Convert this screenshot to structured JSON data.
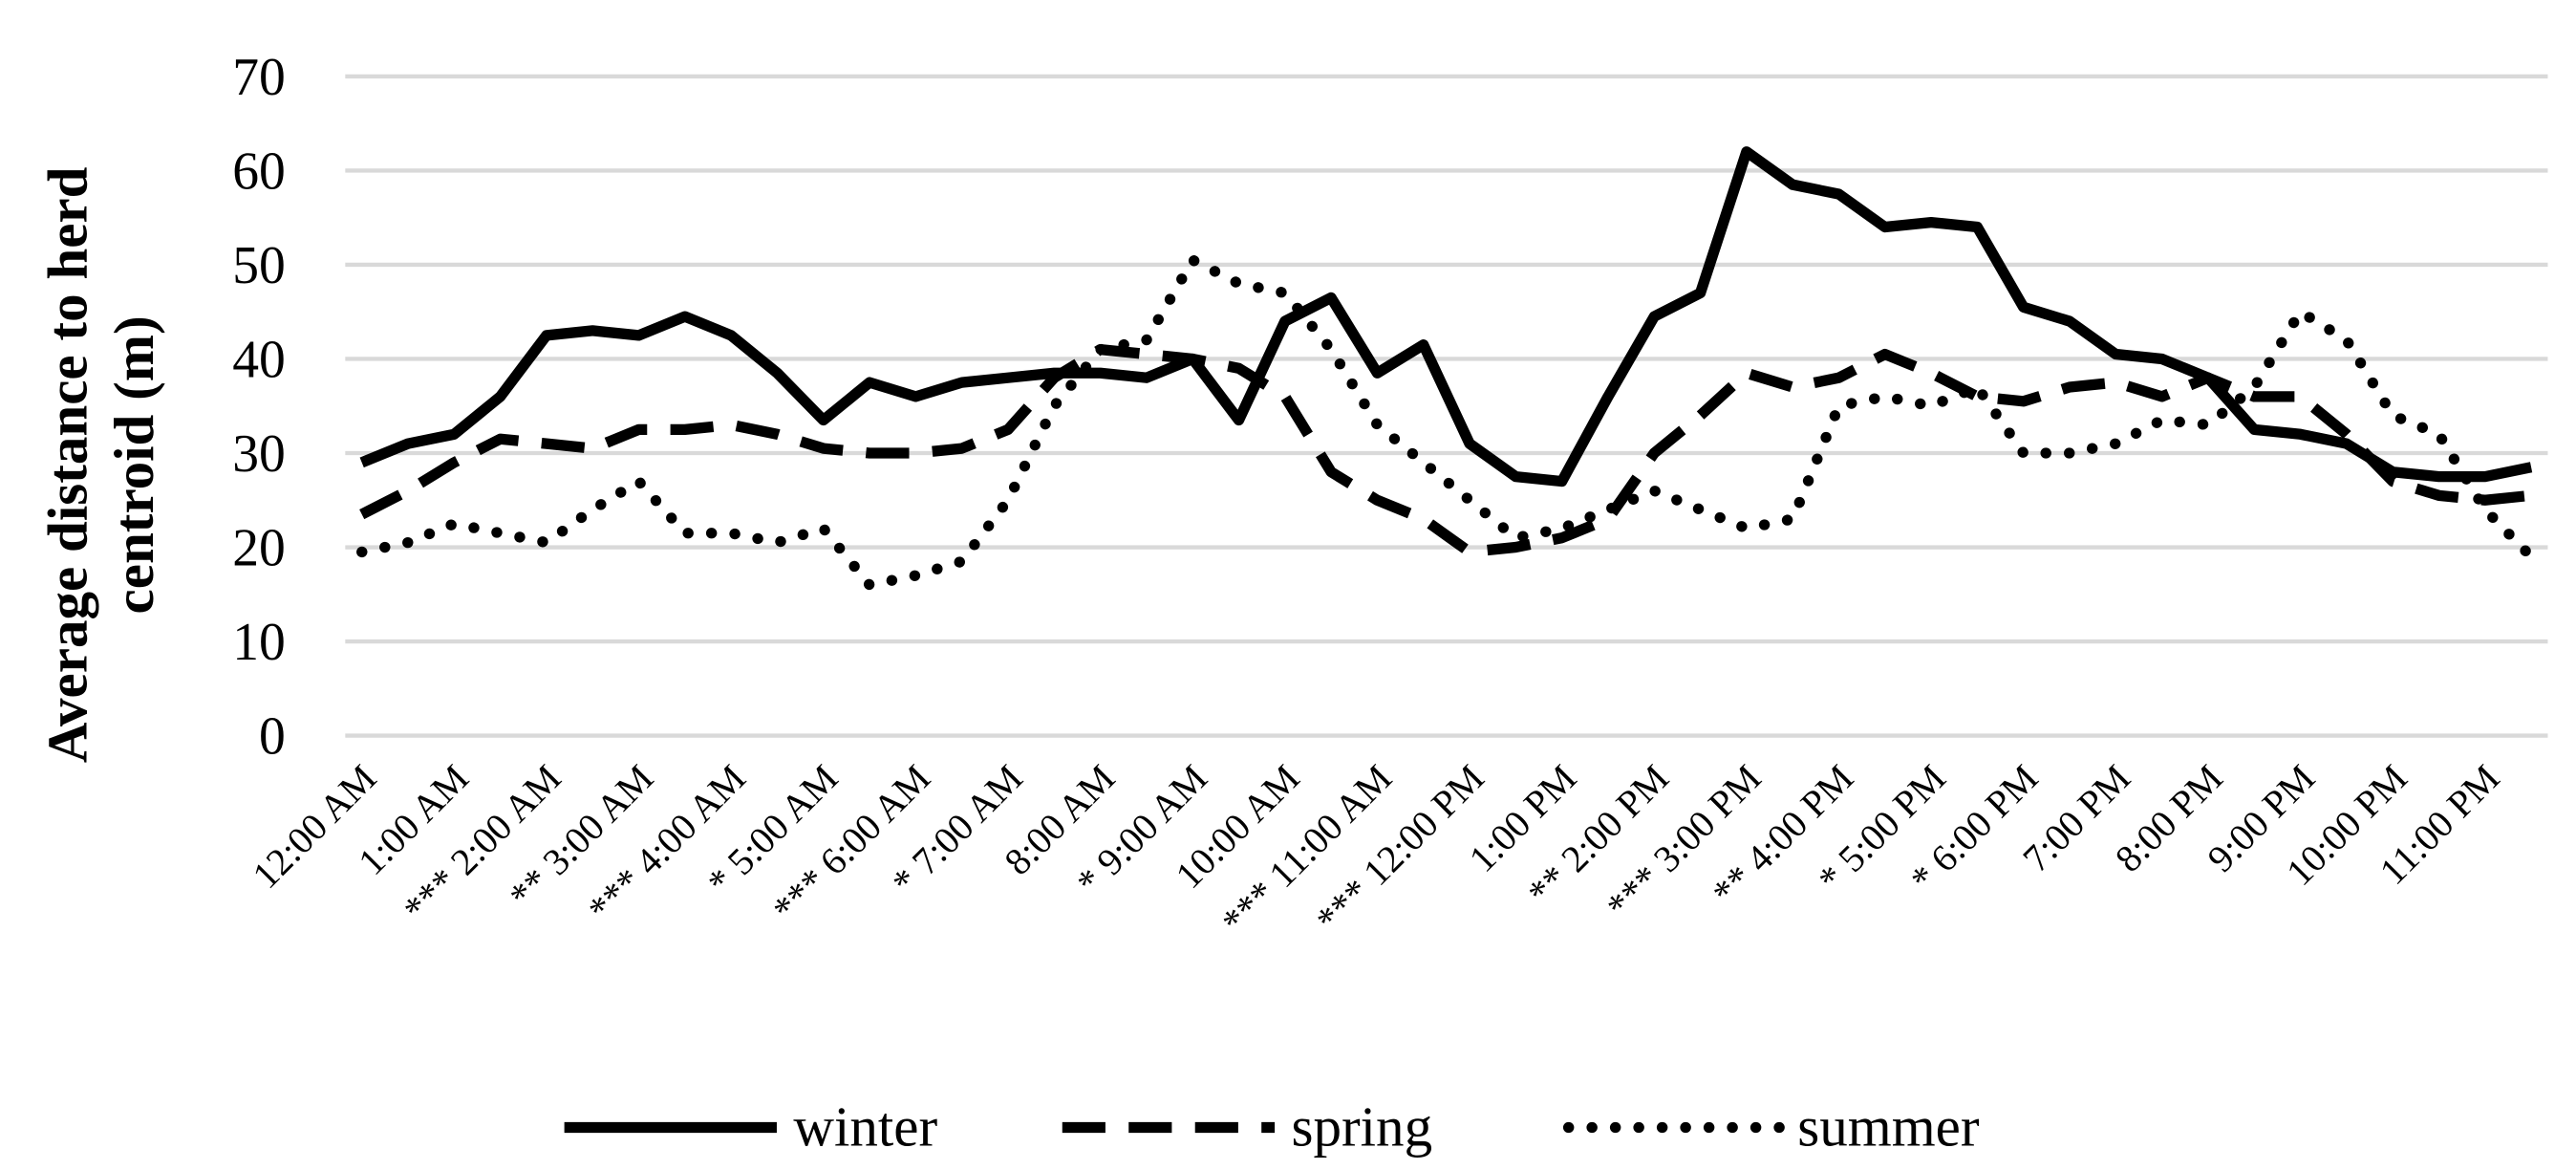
{
  "chart_data": {
    "type": "line",
    "ylabel": [
      "Average distance to herd",
      "centroid (m)"
    ],
    "categories": [
      "12:00 AM",
      null,
      "1:00 AM",
      null,
      "*** 2:00 AM",
      null,
      "** 3:00 AM",
      null,
      "*** 4:00 AM",
      null,
      "* 5:00 AM",
      null,
      "*** 6:00 AM",
      null,
      "* 7:00 AM",
      null,
      "8:00 AM",
      null,
      "* 9:00 AM",
      null,
      "10:00 AM",
      null,
      "*** 11:00 AM",
      null,
      "*** 12:00 PM",
      null,
      "1:00 PM",
      null,
      "** 2:00 PM",
      null,
      "*** 3:00 PM",
      null,
      "** 4:00 PM",
      null,
      "* 5:00 PM",
      null,
      "* 6:00 PM",
      null,
      "7:00 PM",
      null,
      "8:00 PM",
      null,
      "9:00 PM",
      null,
      "10:00 PM",
      null,
      "11:00 PM",
      null
    ],
    "series": [
      {
        "name": "winter",
        "color": "#000000",
        "dash": "solid",
        "values": [
          29,
          31,
          32,
          36,
          42.5,
          43,
          42.5,
          44.5,
          42.5,
          38.5,
          33.5,
          37.5,
          36,
          37.5,
          38,
          38.5,
          38.5,
          38,
          40,
          33.5,
          44,
          46.5,
          38.5,
          41.5,
          31,
          27.5,
          27,
          36,
          44.5,
          47,
          62,
          58.5,
          57.5,
          54,
          54.5,
          54,
          45.5,
          44,
          40.5,
          40,
          38,
          32.5,
          32,
          31,
          28,
          27.5,
          27.5,
          28.5
        ]
      },
      {
        "name": "spring",
        "color": "#000000",
        "dash": "dash",
        "values": [
          23.5,
          26,
          29,
          31.5,
          31,
          30.5,
          32.5,
          32.5,
          33,
          32,
          30.5,
          30,
          30,
          30.5,
          32.5,
          38,
          41,
          40.5,
          40,
          39,
          36,
          28,
          25,
          23,
          19.5,
          20,
          21,
          23,
          30,
          34,
          38.5,
          37,
          38,
          40.5,
          38.5,
          36,
          35.5,
          37,
          37.5,
          36,
          38,
          36,
          36,
          32,
          27,
          25.5,
          25,
          25.5
        ]
      },
      {
        "name": "summer",
        "color": "#000000",
        "dash": "dot",
        "values": [
          19.5,
          20.5,
          22.5,
          21.5,
          20.5,
          24,
          27,
          21.5,
          21.5,
          20.5,
          22,
          16,
          17,
          18.5,
          25,
          35,
          41,
          42,
          50.5,
          48,
          47,
          41,
          33,
          29,
          25,
          21,
          22,
          24,
          26,
          24,
          22,
          23,
          35,
          36,
          35,
          37,
          30,
          30,
          31,
          33.5,
          33,
          37,
          45,
          42,
          34,
          32,
          24,
          19
        ]
      }
    ],
    "ylim": [
      0,
      70
    ],
    "yticks": [
      0,
      10,
      20,
      30,
      40,
      50,
      60,
      70
    ],
    "grid": true,
    "legend": "bottom"
  }
}
